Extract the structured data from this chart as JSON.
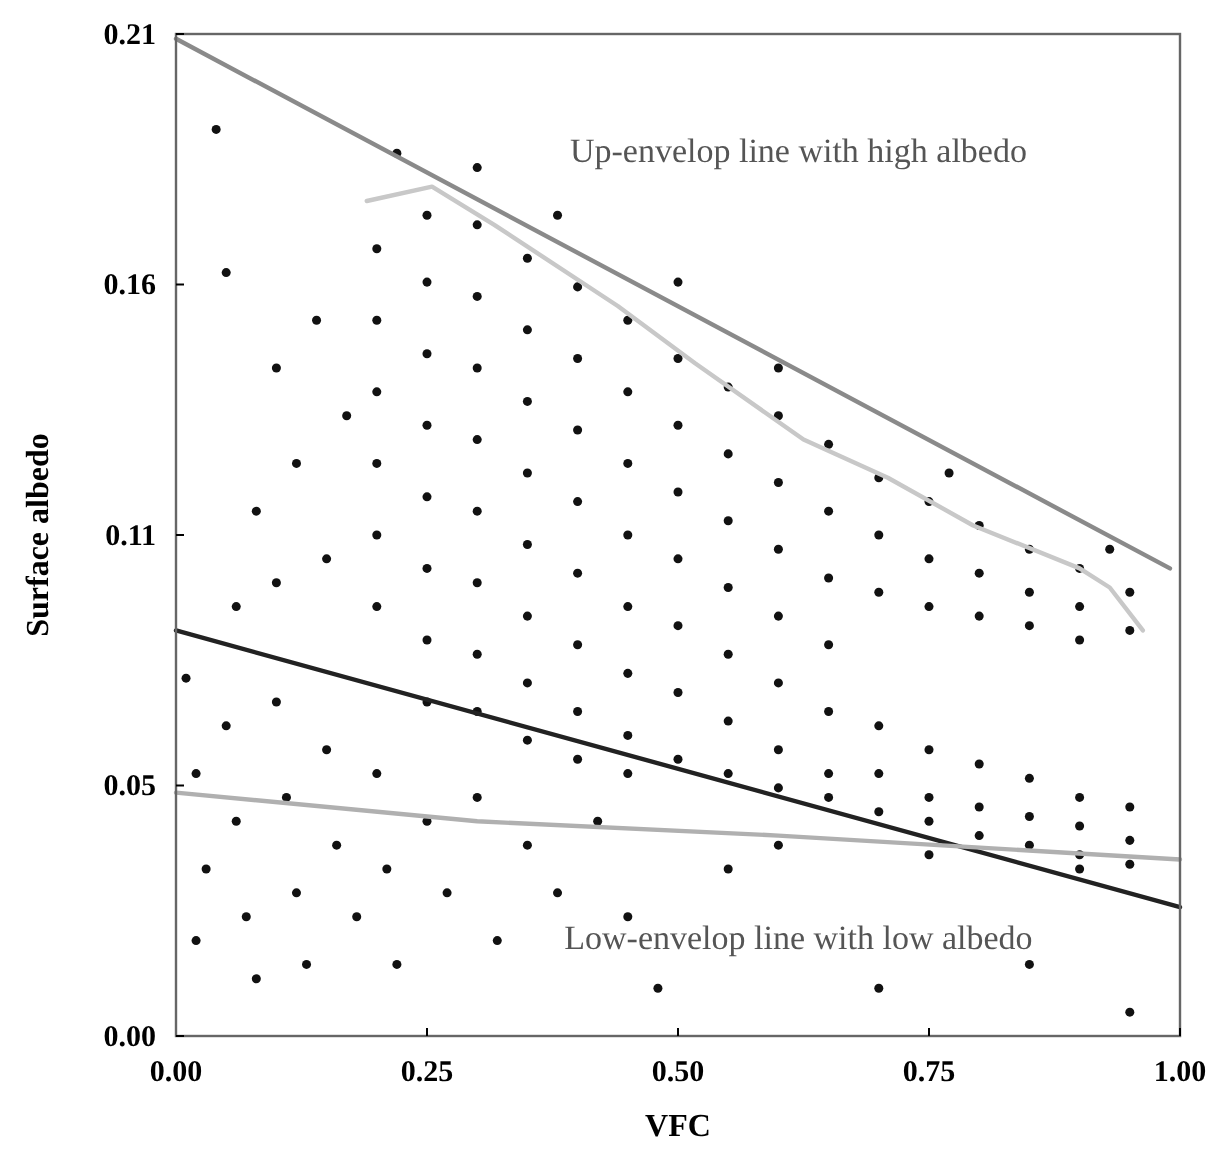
{
  "chart_data": {
    "type": "scatter",
    "xlabel": "VFC",
    "ylabel": "Surface albedo",
    "xlim": [
      0,
      1
    ],
    "ylim": [
      0,
      0.21
    ],
    "xticks": [
      {
        "value": 0,
        "label": "0.00"
      },
      {
        "value": 0.25,
        "label": "0.25"
      },
      {
        "value": 0.5,
        "label": "0.50"
      },
      {
        "value": 0.75,
        "label": "0.75"
      },
      {
        "value": 1,
        "label": "1.00"
      }
    ],
    "yticks": [
      {
        "value": 0,
        "label": "0.00"
      },
      {
        "value": 0.0525,
        "label": "0.05"
      },
      {
        "value": 0.105,
        "label": "0.11"
      },
      {
        "value": 0.1575,
        "label": "0.16"
      },
      {
        "value": 0.21,
        "label": "0.21"
      }
    ],
    "grid": false,
    "marker": "circle",
    "annotations": [
      "Up-envelop line with high albedo",
      "Low-envelop line with low albedo"
    ],
    "series": [
      {
        "color": "#111111",
        "x": [
          0.2,
          0.2,
          0.2,
          0.2,
          0.2,
          0.2,
          0.25,
          0.25,
          0.25,
          0.25,
          0.25,
          0.25,
          0.25,
          0.25,
          0.3,
          0.3,
          0.3,
          0.3,
          0.3,
          0.3,
          0.3,
          0.3,
          0.35,
          0.35,
          0.35,
          0.35,
          0.35,
          0.35,
          0.35,
          0.35,
          0.4,
          0.4,
          0.4,
          0.4,
          0.4,
          0.4,
          0.4,
          0.4,
          0.45,
          0.45,
          0.45,
          0.45,
          0.45,
          0.45,
          0.45,
          0.45,
          0.5,
          0.5,
          0.5,
          0.5,
          0.5,
          0.5,
          0.5,
          0.55,
          0.55,
          0.55,
          0.55,
          0.55,
          0.55,
          0.55,
          0.6,
          0.6,
          0.6,
          0.6,
          0.6,
          0.6,
          0.6,
          0.65,
          0.65,
          0.65,
          0.65,
          0.65,
          0.65,
          0.65,
          0.7,
          0.7,
          0.7,
          0.7,
          0.7,
          0.7,
          0.75,
          0.75,
          0.75,
          0.75,
          0.75,
          0.75,
          0.8,
          0.8,
          0.8,
          0.8,
          0.8,
          0.8,
          0.85,
          0.85,
          0.85,
          0.85,
          0.85,
          0.85,
          0.9,
          0.9,
          0.9,
          0.9,
          0.9,
          0.9,
          0.95,
          0.95,
          0.95,
          0.95,
          0.95,
          0.22,
          0.3,
          0.38,
          0.5,
          0.6,
          0.77,
          0.93,
          0.1,
          0.12,
          0.14,
          0.15,
          0.17,
          0.08,
          0.06,
          0.1,
          0.05,
          0.04,
          0.01,
          0.02,
          0.03,
          0.02,
          0.05,
          0.06,
          0.07,
          0.08,
          0.1,
          0.11,
          0.12,
          0.13,
          0.15,
          0.16,
          0.18,
          0.2,
          0.21,
          0.22,
          0.25,
          0.27,
          0.3,
          0.32,
          0.35,
          0.38,
          0.42,
          0.45,
          0.48,
          0.55,
          0.6,
          0.7,
          0.75,
          0.85,
          0.9,
          0.95
        ],
        "values": [
          0.165,
          0.15,
          0.135,
          0.12,
          0.105,
          0.09,
          0.172,
          0.158,
          0.143,
          0.128,
          0.113,
          0.098,
          0.083,
          0.07,
          0.17,
          0.155,
          0.14,
          0.125,
          0.11,
          0.095,
          0.08,
          0.068,
          0.163,
          0.148,
          0.133,
          0.118,
          0.103,
          0.088,
          0.074,
          0.062,
          0.157,
          0.142,
          0.127,
          0.112,
          0.097,
          0.082,
          0.068,
          0.058,
          0.15,
          0.135,
          0.12,
          0.105,
          0.09,
          0.076,
          0.063,
          0.055,
          0.142,
          0.128,
          0.114,
          0.1,
          0.086,
          0.072,
          0.058,
          0.136,
          0.122,
          0.108,
          0.094,
          0.08,
          0.066,
          0.055,
          0.13,
          0.116,
          0.102,
          0.088,
          0.074,
          0.06,
          0.052,
          0.124,
          0.11,
          0.096,
          0.082,
          0.068,
          0.055,
          0.05,
          0.117,
          0.105,
          0.093,
          0.065,
          0.055,
          0.047,
          0.112,
          0.1,
          0.09,
          0.06,
          0.05,
          0.045,
          0.107,
          0.097,
          0.088,
          0.057,
          0.048,
          0.042,
          0.102,
          0.093,
          0.086,
          0.054,
          0.046,
          0.04,
          0.098,
          0.09,
          0.083,
          0.05,
          0.044,
          0.038,
          0.093,
          0.085,
          0.048,
          0.041,
          0.036,
          0.185,
          0.182,
          0.172,
          0.158,
          0.14,
          0.118,
          0.102,
          0.14,
          0.12,
          0.15,
          0.1,
          0.13,
          0.11,
          0.09,
          0.095,
          0.16,
          0.19,
          0.075,
          0.055,
          0.035,
          0.02,
          0.065,
          0.045,
          0.025,
          0.012,
          0.07,
          0.05,
          0.03,
          0.015,
          0.06,
          0.04,
          0.025,
          0.055,
          0.035,
          0.015,
          0.045,
          0.03,
          0.05,
          0.02,
          0.04,
          0.03,
          0.045,
          0.025,
          0.01,
          0.035,
          0.04,
          0.01,
          0.038,
          0.015,
          0.035,
          0.005
        ]
      },
      {
        "type": "line",
        "marker": "none",
        "color": "#8a8a8a",
        "line_style": "solid",
        "x": [
          0,
          0.99
        ],
        "values": [
          0.209,
          0.098
        ]
      },
      {
        "type": "line",
        "marker": "none",
        "color": "#222222",
        "line_style": "solid",
        "x": [
          0,
          1
        ],
        "values": [
          0.085,
          0.027
        ]
      },
      {
        "type": "line",
        "marker": "none",
        "color": "#b0b0b0",
        "line_style": "solid",
        "x": [
          0,
          0.3,
          0.6,
          1
        ],
        "values": [
          0.051,
          0.045,
          0.042,
          0.037
        ]
      },
      {
        "type": "line",
        "marker": "none",
        "color": "#c8c8c8",
        "line_style": "solid",
        "x": [
          0.19,
          0.255,
          0.317,
          0.44,
          0.517,
          0.625,
          0.709,
          0.794,
          0.9,
          0.93,
          0.963
        ],
        "values": [
          0.175,
          0.178,
          0.17,
          0.153,
          0.141,
          0.125,
          0.117,
          0.107,
          0.098,
          0.094,
          0.085
        ]
      }
    ]
  }
}
